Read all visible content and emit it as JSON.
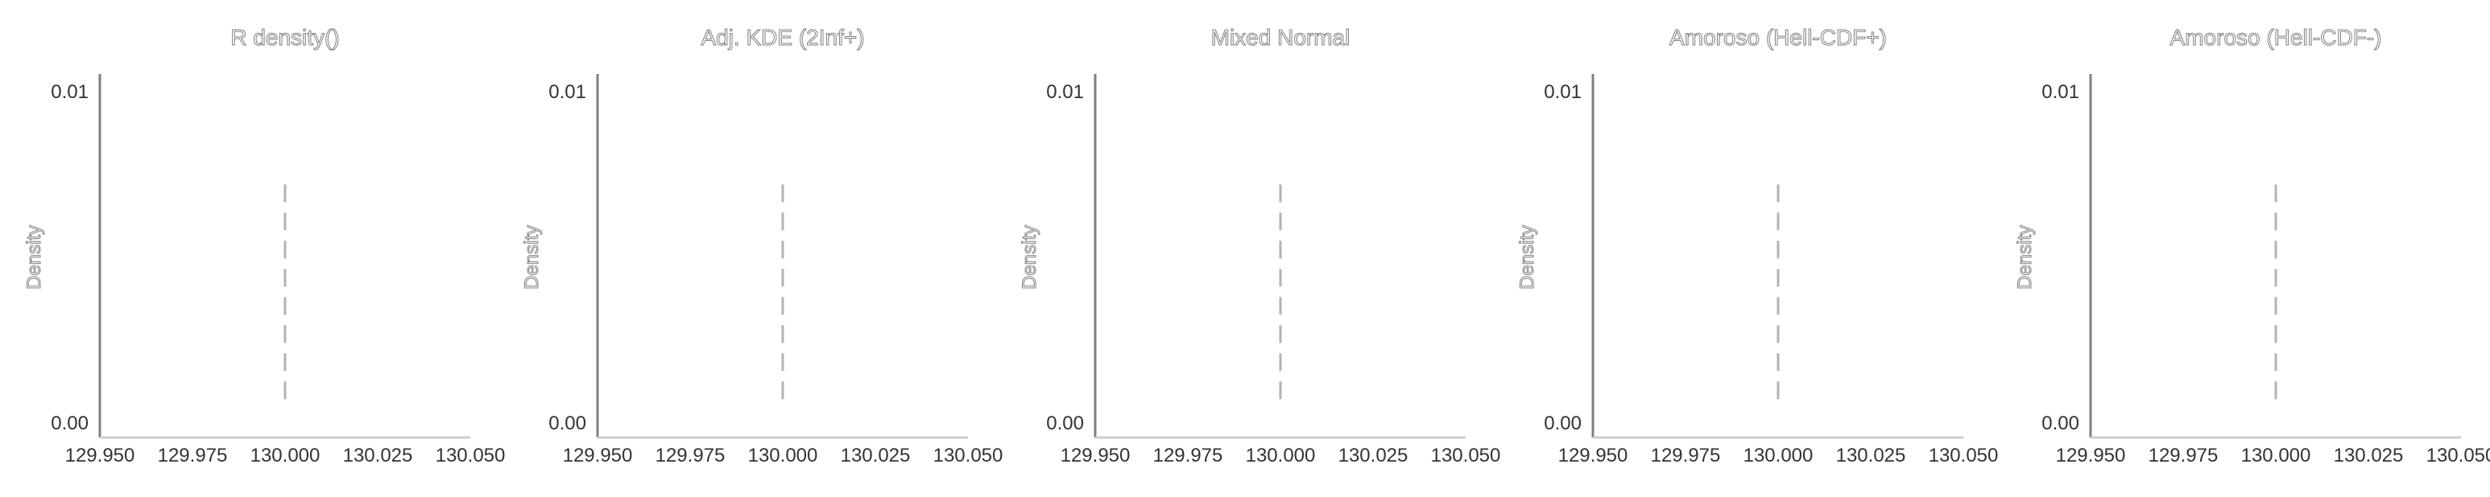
{
  "colors": {
    "axis_left": "#7f7f7f",
    "axis_bottom": "#cccccc",
    "vline": "#b3b3b3",
    "tick_text": "#333333",
    "title_outline": "#7f7f7f"
  },
  "chart_data": [
    {
      "type": "line",
      "title": "R density()",
      "xlabel": "",
      "ylabel": "Density",
      "xlim": [
        129.95,
        130.05
      ],
      "ylim": [
        0.0,
        0.01
      ],
      "x_ticks": [
        "129.950",
        "129.975",
        "130.000",
        "130.025",
        "130.050"
      ],
      "y_ticks": [
        "0.00",
        "0.01"
      ],
      "vline": {
        "x": 130.0,
        "y_from": 0.0007,
        "y_to": 0.0072,
        "style": "dashed"
      },
      "series": []
    },
    {
      "type": "line",
      "title": "Adj. KDE (2Inf+)",
      "xlabel": "",
      "ylabel": "Density",
      "xlim": [
        129.95,
        130.05
      ],
      "ylim": [
        0.0,
        0.01
      ],
      "x_ticks": [
        "129.950",
        "129.975",
        "130.000",
        "130.025",
        "130.050"
      ],
      "y_ticks": [
        "0.00",
        "0.01"
      ],
      "vline": {
        "x": 130.0,
        "y_from": 0.0007,
        "y_to": 0.0072,
        "style": "dashed"
      },
      "series": []
    },
    {
      "type": "line",
      "title": "Mixed Normal",
      "xlabel": "",
      "ylabel": "Density",
      "xlim": [
        129.95,
        130.05
      ],
      "ylim": [
        0.0,
        0.01
      ],
      "x_ticks": [
        "129.950",
        "129.975",
        "130.000",
        "130.025",
        "130.050"
      ],
      "y_ticks": [
        "0.00",
        "0.01"
      ],
      "vline": {
        "x": 130.0,
        "y_from": 0.0007,
        "y_to": 0.0072,
        "style": "dashed"
      },
      "series": []
    },
    {
      "type": "line",
      "title": "Amoroso (Hell-CDF+)",
      "xlabel": "",
      "ylabel": "Density",
      "xlim": [
        129.95,
        130.05
      ],
      "ylim": [
        0.0,
        0.01
      ],
      "x_ticks": [
        "129.950",
        "129.975",
        "130.000",
        "130.025",
        "130.050"
      ],
      "y_ticks": [
        "0.00",
        "0.01"
      ],
      "vline": {
        "x": 130.0,
        "y_from": 0.0007,
        "y_to": 0.0072,
        "style": "dashed"
      },
      "series": []
    },
    {
      "type": "line",
      "title": "Amoroso (Hell-CDF-)",
      "xlabel": "",
      "ylabel": "Density",
      "xlim": [
        129.95,
        130.05
      ],
      "ylim": [
        0.0,
        0.01
      ],
      "x_ticks": [
        "129.950",
        "129.975",
        "130.000",
        "130.025",
        "130.050"
      ],
      "y_ticks": [
        "0.00",
        "0.01"
      ],
      "vline": {
        "x": 130.0,
        "y_from": 0.0007,
        "y_to": 0.0072,
        "style": "dashed"
      },
      "series": []
    }
  ]
}
